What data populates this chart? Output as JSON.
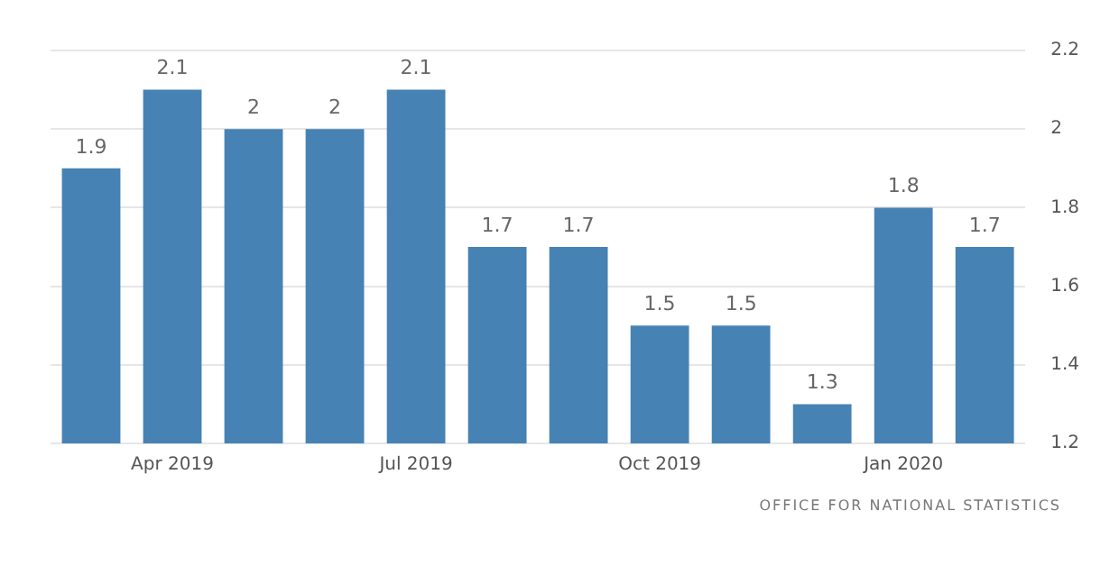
{
  "chart_data": {
    "type": "bar",
    "categories": [
      null,
      "Apr 2019",
      null,
      null,
      "Jul 2019",
      null,
      null,
      "Oct 2019",
      null,
      null,
      "Jan 2020",
      null
    ],
    "values": [
      1.9,
      2.1,
      2,
      2,
      2.1,
      1.7,
      1.7,
      1.5,
      1.5,
      1.3,
      1.8,
      1.7
    ],
    "color": "#4682b4",
    "ylim": [
      1.2,
      2.2
    ],
    "yticks": [
      1.2,
      1.4,
      1.6,
      1.8,
      2,
      2.2
    ],
    "grid": "y",
    "legend": false,
    "data_labels": true,
    "annotations": [
      "OFFICE FOR NATIONAL STATISTICS"
    ]
  }
}
